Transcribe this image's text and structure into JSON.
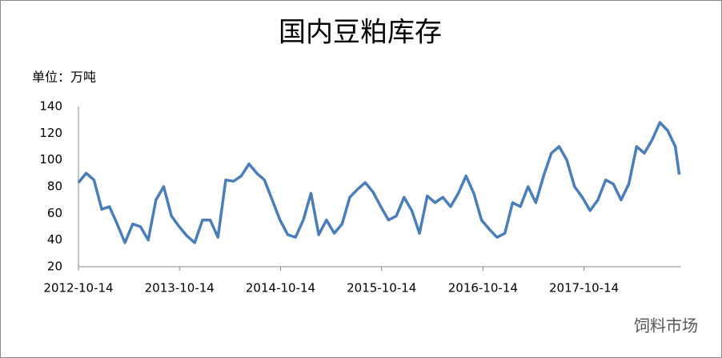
{
  "chart_data": {
    "type": "line",
    "title": "国内豆粕库存",
    "unit_label": "单位：万吨",
    "watermark": "饲料市场",
    "x": [
      "2012-10-14",
      "2012-11-11",
      "2012-12-09",
      "2013-01-06",
      "2013-02-03",
      "2013-03-03",
      "2013-03-31",
      "2013-04-28",
      "2013-05-26",
      "2013-06-23",
      "2013-07-21",
      "2013-08-18",
      "2013-09-15",
      "2013-10-13",
      "2013-11-10",
      "2013-12-08",
      "2014-01-05",
      "2014-02-02",
      "2014-03-02",
      "2014-03-30",
      "2014-04-27",
      "2014-05-25",
      "2014-06-22",
      "2014-07-20",
      "2014-08-17",
      "2014-09-14",
      "2014-10-12",
      "2014-11-09",
      "2014-12-07",
      "2015-01-04",
      "2015-02-01",
      "2015-03-01",
      "2015-03-29",
      "2015-04-26",
      "2015-05-24",
      "2015-06-21",
      "2015-07-19",
      "2015-08-16",
      "2015-09-13",
      "2015-10-11",
      "2015-11-08",
      "2015-12-06",
      "2016-01-03",
      "2016-01-31",
      "2016-02-28",
      "2016-03-27",
      "2016-04-24",
      "2016-05-22",
      "2016-06-19",
      "2016-07-17",
      "2016-08-14",
      "2016-09-11",
      "2016-10-09",
      "2016-11-06",
      "2016-12-04",
      "2017-01-01",
      "2017-01-29",
      "2017-02-26",
      "2017-03-26",
      "2017-04-23",
      "2017-05-21",
      "2017-06-18",
      "2017-07-16",
      "2017-08-13",
      "2017-09-10",
      "2017-10-08",
      "2017-11-05",
      "2017-12-03",
      "2017-12-31",
      "2018-01-28",
      "2018-02-25",
      "2018-03-25",
      "2018-04-22",
      "2018-05-20",
      "2018-06-17",
      "2018-07-15",
      "2018-08-12",
      "2018-09-09",
      "2018-09-23"
    ],
    "series": [
      {
        "name": "国内豆粕库存",
        "color": "#4a7ebb",
        "values": [
          83,
          90,
          85,
          63,
          65,
          52,
          38,
          52,
          50,
          40,
          70,
          80,
          58,
          50,
          43,
          38,
          55,
          55,
          42,
          85,
          84,
          88,
          97,
          90,
          85,
          70,
          55,
          44,
          42,
          55,
          75,
          44,
          55,
          45,
          52,
          72,
          78,
          83,
          76,
          65,
          55,
          58,
          72,
          62,
          45,
          73,
          68,
          72,
          65,
          75,
          88,
          75,
          55,
          48,
          42,
          45,
          68,
          65,
          80,
          68,
          88,
          105,
          110,
          100,
          80,
          72,
          62,
          70,
          85,
          82,
          70,
          82,
          110,
          105,
          115,
          128,
          122,
          110,
          89
        ]
      }
    ],
    "xlim": [
      "2012-10-14",
      "2018-09-30"
    ],
    "xticks": [
      "2012-10-14",
      "2013-10-14",
      "2014-10-14",
      "2015-10-14",
      "2016-10-14",
      "2017-10-14"
    ],
    "ylim": [
      20,
      140
    ],
    "yticks": [
      20,
      40,
      60,
      80,
      100,
      120,
      140
    ]
  }
}
